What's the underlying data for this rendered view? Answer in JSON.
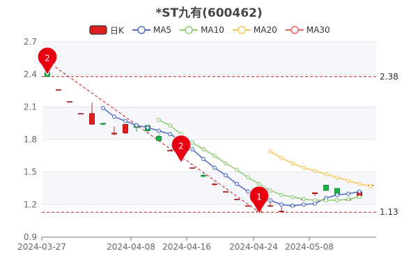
{
  "title": "*ST九有(600462)",
  "legend": [
    {
      "label": "日K",
      "color": "#e01c1c",
      "kind": "candle"
    },
    {
      "label": "MA5",
      "color": "#5470c6",
      "kind": "line"
    },
    {
      "label": "MA10",
      "color": "#91cc75",
      "kind": "line"
    },
    {
      "label": "MA20",
      "color": "#fac858",
      "kind": "line"
    },
    {
      "label": "MA30",
      "color": "#ee6666",
      "kind": "line"
    }
  ],
  "chart_data": {
    "type": "candlestick",
    "title": "*ST九有(600462)",
    "x_ticks": [
      "2024-03-27",
      "2024-04-08",
      "2024-04-16",
      "2024-04-24",
      "2024-05-08"
    ],
    "y_ticks": [
      "0.9",
      "1.2",
      "1.5",
      "1.8",
      "2.1",
      "2.4",
      "2.7"
    ],
    "ylim": [
      0.9,
      2.7
    ],
    "grid": true,
    "up_color": "#e01c1c",
    "down_color": "#14b143",
    "markers": [
      {
        "label": "2",
        "x_index": 0,
        "value": 2.55
      },
      {
        "label": "2",
        "x_index": 12,
        "value": 1.74
      },
      {
        "label": "1",
        "x_index": 19,
        "value": 1.27
      }
    ],
    "reference_lines": [
      {
        "label": "2.38",
        "value": 2.38
      },
      {
        "label": "1.13",
        "value": 1.13
      }
    ],
    "trend_line": [
      {
        "x_index": 0,
        "value": 2.52
      },
      {
        "x_index": 19,
        "value": 1.13
      }
    ],
    "candles": [
      {
        "open": 2.49,
        "close": 2.38,
        "low": 2.38,
        "high": 2.49
      },
      {
        "open": 2.26,
        "close": 2.26,
        "low": 2.26,
        "high": 2.26
      },
      {
        "open": 2.15,
        "close": 2.15,
        "low": 2.15,
        "high": 2.15
      },
      {
        "open": 2.04,
        "close": 2.04,
        "low": 2.04,
        "high": 2.04
      },
      {
        "open": 1.94,
        "close": 2.04,
        "low": 1.94,
        "high": 2.14
      },
      {
        "open": 1.95,
        "close": 1.94,
        "low": 1.93,
        "high": 1.95
      },
      {
        "open": 1.85,
        "close": 1.86,
        "low": 1.84,
        "high": 1.92
      },
      {
        "open": 1.86,
        "close": 1.94,
        "low": 1.85,
        "high": 1.94
      },
      {
        "open": 1.93,
        "close": 1.91,
        "low": 1.87,
        "high": 1.95
      },
      {
        "open": 1.93,
        "close": 1.88,
        "low": 1.87,
        "high": 1.93
      },
      {
        "open": 1.83,
        "close": 1.79,
        "low": 1.78,
        "high": 1.85
      },
      {
        "open": 1.7,
        "close": 1.7,
        "low": 1.7,
        "high": 1.7
      },
      {
        "open": 1.62,
        "close": 1.62,
        "low": 1.62,
        "high": 1.62
      },
      {
        "open": 1.54,
        "close": 1.54,
        "low": 1.54,
        "high": 1.54
      },
      {
        "open": 1.47,
        "close": 1.46,
        "low": 1.45,
        "high": 1.5
      },
      {
        "open": 1.39,
        "close": 1.39,
        "low": 1.37,
        "high": 1.4
      },
      {
        "open": 1.32,
        "close": 1.32,
        "low": 1.32,
        "high": 1.32
      },
      {
        "open": 1.25,
        "close": 1.25,
        "low": 1.25,
        "high": 1.25
      },
      {
        "open": 1.19,
        "close": 1.19,
        "low": 1.19,
        "high": 1.19
      },
      {
        "open": 1.13,
        "close": 1.25,
        "low": 1.13,
        "high": 1.25
      },
      {
        "open": 1.19,
        "close": 1.19,
        "low": 1.18,
        "high": 1.23
      },
      {
        "open": 1.14,
        "close": 1.14,
        "low": 1.13,
        "high": 1.19
      },
      {
        "open": 1.19,
        "close": 1.19,
        "low": 1.19,
        "high": 1.19
      },
      {
        "open": 1.25,
        "close": 1.25,
        "low": 1.24,
        "high": 1.27
      },
      {
        "open": 1.3,
        "close": 1.31,
        "low": 1.28,
        "high": 1.31
      },
      {
        "open": 1.38,
        "close": 1.33,
        "low": 1.33,
        "high": 1.38
      },
      {
        "open": 1.35,
        "close": 1.29,
        "low": 1.28,
        "high": 1.35
      },
      {
        "open": 1.24,
        "close": 1.25,
        "low": 1.24,
        "high": 1.26
      },
      {
        "open": 1.28,
        "close": 1.32,
        "low": 1.28,
        "high": 1.32
      },
      {
        "open": 1.38,
        "close": 1.38,
        "low": 1.38,
        "high": 1.38
      }
    ],
    "series": [
      {
        "name": "MA5",
        "color": "#5470c6",
        "start_index": 5,
        "values": [
          2.09,
          2.01,
          1.97,
          1.93,
          1.91,
          1.88,
          1.85,
          1.79,
          1.71,
          1.62,
          1.54,
          1.47,
          1.39,
          1.32,
          1.27,
          1.24,
          1.2,
          1.19,
          1.2,
          1.21,
          1.26,
          1.29,
          1.3,
          1.32
        ]
      },
      {
        "name": "MA10",
        "color": "#91cc75",
        "start_index": 10,
        "values": [
          1.98,
          1.93,
          1.85,
          1.77,
          1.71,
          1.65,
          1.58,
          1.52,
          1.45,
          1.39,
          1.33,
          1.29,
          1.27,
          1.25,
          1.24,
          1.24,
          1.24,
          1.25,
          1.27
        ]
      },
      {
        "name": "MA20",
        "color": "#fac858",
        "start_index": 20,
        "values": [
          1.69,
          1.63,
          1.58,
          1.54,
          1.51,
          1.48,
          1.45,
          1.42,
          1.39,
          1.37
        ]
      }
    ]
  }
}
